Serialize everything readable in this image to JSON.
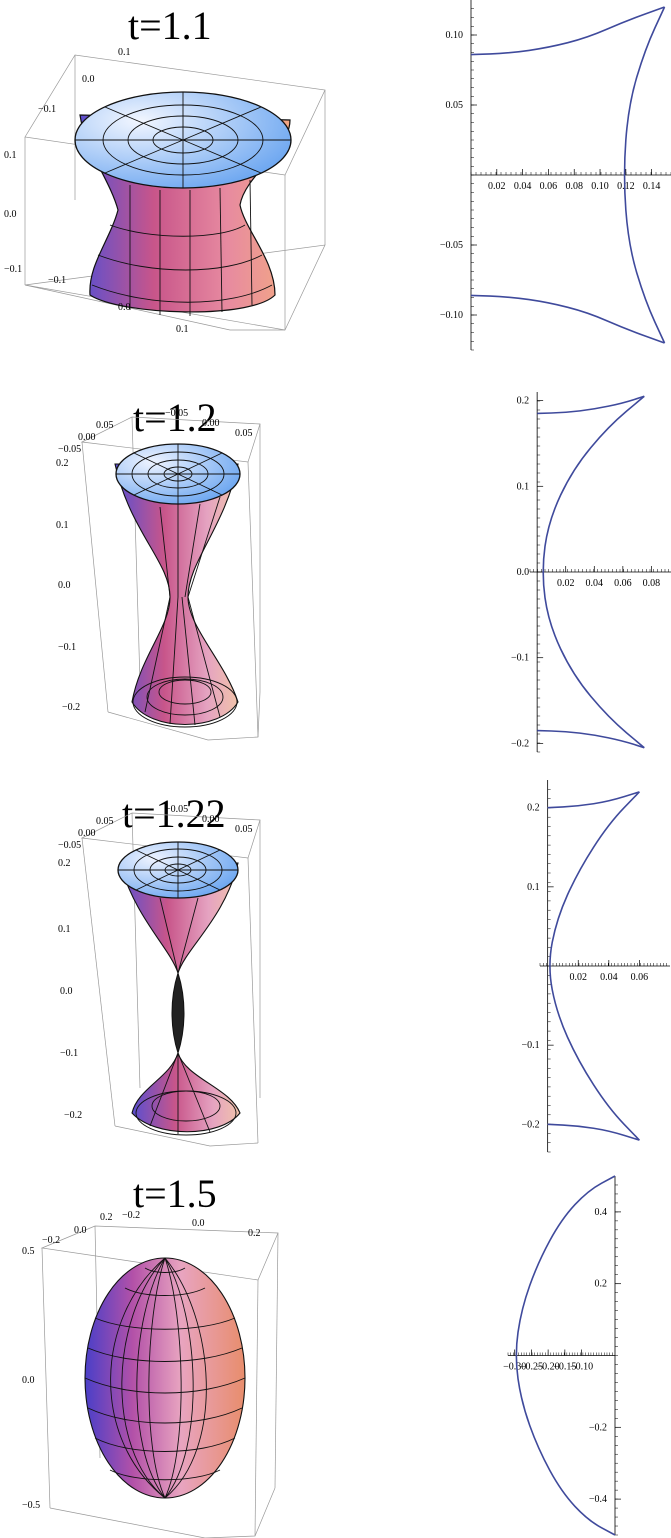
{
  "panels": [
    {
      "title": "t=1.1",
      "box_labels": {
        "top_y": [
          "0.1",
          "0.0",
          "−0.1"
        ],
        "left_z": [
          "0.1",
          "0.0",
          "−0.1"
        ],
        "bottom_x": [
          "−0.1",
          "0.0",
          "0.1"
        ]
      }
    },
    {
      "title": "t=1.2",
      "box_labels": {
        "top_x": [
          "−0.05",
          "0.00",
          "0.05"
        ],
        "top_y": [
          "0.05",
          "0.00",
          "−0.05"
        ],
        "left_z": [
          "0.2",
          "0.1",
          "0.0",
          "−0.1",
          "−0.2"
        ]
      }
    },
    {
      "title": "t=1.22",
      "box_labels": {
        "top_x": [
          "−0.05",
          "0.00",
          "0.05"
        ],
        "top_y": [
          "0.05",
          "0.00",
          "−0.05"
        ],
        "left_z": [
          "0.2",
          "0.1",
          "0.0",
          "−0.1",
          "−0.2"
        ]
      }
    },
    {
      "title": "t=1.5",
      "box_labels": {
        "top_x": [
          "−0.2",
          "0.0",
          "0.2"
        ],
        "top_y": [
          "0.2",
          "0.0",
          "−0.2"
        ],
        "left_z": [
          "0.5",
          "0.0",
          "−0.5"
        ]
      }
    }
  ],
  "chart_data": [
    {
      "type": "line",
      "color": "#3f4a9c",
      "xlim": [
        0,
        0.155
      ],
      "ylim": [
        -0.125,
        0.125
      ],
      "xticks": [
        "0.02",
        "0.04",
        "0.06",
        "0.08",
        "0.10",
        "0.12",
        "0.14"
      ],
      "yticks": [
        "0.10",
        "0.05",
        "−0.05",
        "−0.10"
      ],
      "curves": [
        {
          "points": [
            [
              0,
              0.086
            ],
            [
              0.03,
              0.087
            ],
            [
              0.06,
              0.091
            ],
            [
              0.09,
              0.098
            ],
            [
              0.12,
              0.11
            ],
            [
              0.15,
              0.12
            ]
          ]
        },
        {
          "points": [
            [
              0,
              -0.086
            ],
            [
              0.03,
              -0.087
            ],
            [
              0.06,
              -0.091
            ],
            [
              0.09,
              -0.098
            ],
            [
              0.12,
              -0.11
            ],
            [
              0.15,
              -0.12
            ]
          ]
        },
        {
          "points": [
            [
              0.15,
              0.12
            ],
            [
              0.135,
              0.09
            ],
            [
              0.122,
              0.05
            ],
            [
              0.118,
              0.0
            ],
            [
              0.122,
              -0.05
            ],
            [
              0.135,
              -0.09
            ],
            [
              0.15,
              -0.12
            ]
          ]
        }
      ]
    },
    {
      "type": "line",
      "color": "#3f4a9c",
      "xlim": [
        -0.005,
        0.1
      ],
      "ylim": [
        -0.21,
        0.21
      ],
      "xticks": [
        "0.02",
        "0.04",
        "0.06",
        "0.08"
      ],
      "yticks": [
        "0.2",
        "0.1",
        "0.0",
        "−0.1",
        "−0.2"
      ],
      "curves": [
        {
          "points": [
            [
              0,
              0.185
            ],
            [
              0.02,
              0.186
            ],
            [
              0.04,
              0.19
            ],
            [
              0.06,
              0.197
            ],
            [
              0.075,
              0.205
            ]
          ]
        },
        {
          "points": [
            [
              0,
              -0.185
            ],
            [
              0.02,
              -0.186
            ],
            [
              0.04,
              -0.19
            ],
            [
              0.06,
              -0.197
            ],
            [
              0.075,
              -0.205
            ]
          ]
        },
        {
          "points": [
            [
              0.075,
              0.205
            ],
            [
              0.05,
              0.17
            ],
            [
              0.025,
              0.12
            ],
            [
              0.008,
              0.06
            ],
            [
              0.003,
              0.0
            ],
            [
              0.008,
              -0.06
            ],
            [
              0.025,
              -0.12
            ],
            [
              0.05,
              -0.17
            ],
            [
              0.075,
              -0.205
            ]
          ]
        }
      ]
    },
    {
      "type": "line",
      "color": "#3f4a9c",
      "xlim": [
        -0.005,
        0.08
      ],
      "ylim": [
        -0.235,
        0.235
      ],
      "xticks": [
        "0.02",
        "0.04",
        "0.06"
      ],
      "yticks": [
        "0.2",
        "0.1",
        "−0.1",
        "−0.2"
      ],
      "curves": [
        {
          "points": [
            [
              0,
              0.2
            ],
            [
              0.02,
              0.202
            ],
            [
              0.04,
              0.208
            ],
            [
              0.06,
              0.22
            ]
          ]
        },
        {
          "points": [
            [
              0,
              -0.2
            ],
            [
              0.02,
              -0.202
            ],
            [
              0.04,
              -0.208
            ],
            [
              0.06,
              -0.22
            ]
          ]
        },
        {
          "points": [
            [
              0.06,
              0.22
            ],
            [
              0.04,
              0.18
            ],
            [
              0.02,
              0.12
            ],
            [
              0.006,
              0.06
            ],
            [
              0.0,
              0.0
            ],
            [
              0.006,
              -0.06
            ],
            [
              0.02,
              -0.12
            ],
            [
              0.04,
              -0.18
            ],
            [
              0.06,
              -0.22
            ]
          ]
        }
      ]
    },
    {
      "type": "line",
      "color": "#3f4a9c",
      "xlim": [
        -0.32,
        0.0
      ],
      "ylim": [
        -0.5,
        0.5
      ],
      "xticks": [
        "−0.30",
        "−0.25",
        "−0.20",
        "−0.15",
        "−0.10"
      ],
      "yticks": [
        "0.4",
        "0.2",
        "−0.2",
        "−0.4"
      ],
      "curves": [
        {
          "points": [
            [
              0,
              0.5
            ],
            [
              -0.08,
              0.46
            ],
            [
              -0.16,
              0.38
            ],
            [
              -0.23,
              0.26
            ],
            [
              -0.28,
              0.13
            ],
            [
              -0.3,
              0.0
            ],
            [
              -0.28,
              -0.13
            ],
            [
              -0.23,
              -0.26
            ],
            [
              -0.16,
              -0.38
            ],
            [
              -0.08,
              -0.46
            ],
            [
              0,
              -0.5
            ]
          ]
        }
      ]
    }
  ]
}
